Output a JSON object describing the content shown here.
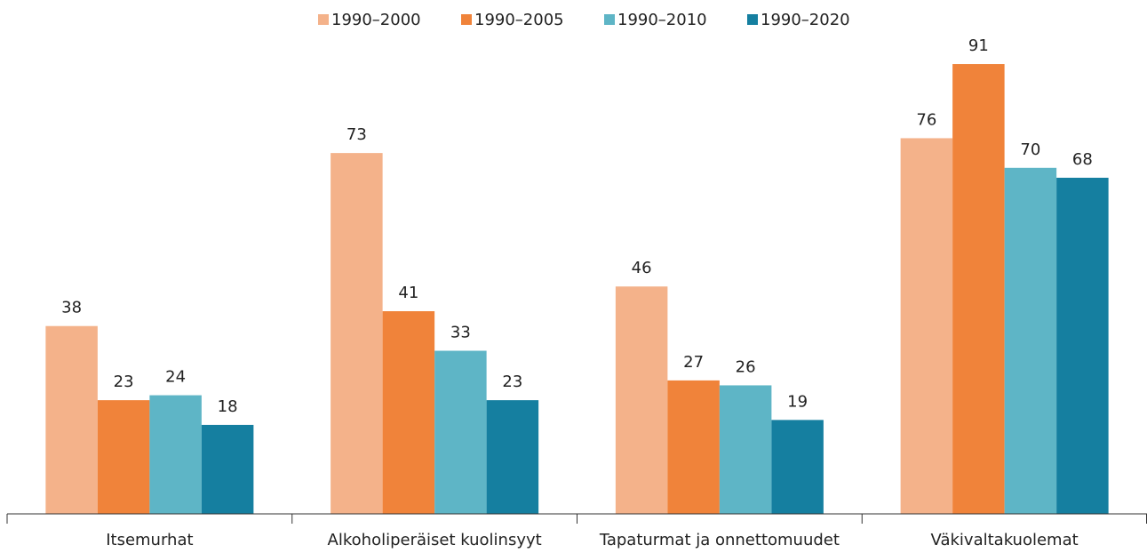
{
  "chart_data": {
    "type": "bar",
    "categories": [
      "Itsemurhat",
      "Alkoholiperäiset kuolinsyyt",
      "Tapaturmat ja onnettomuudet",
      "Väkivaltakuolemat"
    ],
    "series": [
      {
        "name": "1990–2000",
        "color": "#f4b28a",
        "values": [
          38,
          73,
          46,
          76
        ]
      },
      {
        "name": "1990–2005",
        "color": "#f0833a",
        "values": [
          23,
          41,
          27,
          91
        ]
      },
      {
        "name": "1990–2010",
        "color": "#5eb5c6",
        "values": [
          24,
          33,
          26,
          70
        ]
      },
      {
        "name": "1990–2020",
        "color": "#157fa0",
        "values": [
          18,
          23,
          19,
          68
        ]
      }
    ],
    "ylim": [
      0,
      100
    ],
    "legend": "top"
  }
}
